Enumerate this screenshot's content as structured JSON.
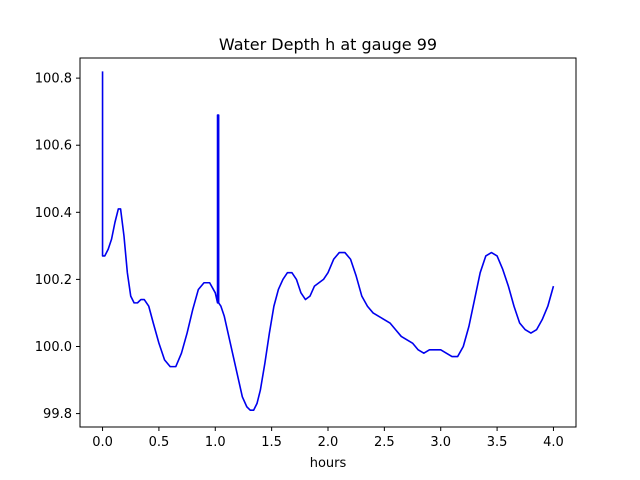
{
  "chart_data": {
    "type": "line",
    "title": "Water Depth h at gauge 99",
    "xlabel": "hours",
    "ylabel": "",
    "xlim": [
      -0.2,
      4.2
    ],
    "ylim": [
      99.76,
      100.86
    ],
    "grid": false,
    "legend": "none",
    "x_ticks": [
      0.0,
      0.5,
      1.0,
      1.5,
      2.0,
      2.5,
      3.0,
      3.5,
      4.0
    ],
    "x_tick_labels": [
      "0.0",
      "0.5",
      "1.0",
      "1.5",
      "2.0",
      "2.5",
      "3.0",
      "3.5",
      "4.0"
    ],
    "y_ticks": [
      99.8,
      100.0,
      100.2,
      100.4,
      100.6,
      100.8
    ],
    "y_tick_labels": [
      "99.8",
      "100.0",
      "100.2",
      "100.4",
      "100.6",
      "100.8"
    ],
    "series": [
      {
        "color": "#0000ee",
        "points": [
          [
            0.0,
            100.82
          ],
          [
            0.0,
            100.27
          ],
          [
            0.02,
            100.27
          ],
          [
            0.05,
            100.29
          ],
          [
            0.08,
            100.32
          ],
          [
            0.11,
            100.37
          ],
          [
            0.14,
            100.41
          ],
          [
            0.16,
            100.41
          ],
          [
            0.19,
            100.33
          ],
          [
            0.22,
            100.22
          ],
          [
            0.25,
            100.15
          ],
          [
            0.28,
            100.13
          ],
          [
            0.31,
            100.13
          ],
          [
            0.34,
            100.14
          ],
          [
            0.37,
            100.14
          ],
          [
            0.41,
            100.12
          ],
          [
            0.45,
            100.07
          ],
          [
            0.5,
            100.01
          ],
          [
            0.55,
            99.96
          ],
          [
            0.6,
            99.94
          ],
          [
            0.65,
            99.94
          ],
          [
            0.7,
            99.98
          ],
          [
            0.75,
            100.04
          ],
          [
            0.8,
            100.11
          ],
          [
            0.85,
            100.17
          ],
          [
            0.9,
            100.19
          ],
          [
            0.95,
            100.19
          ],
          [
            1.0,
            100.16
          ],
          [
            1.02,
            100.13
          ],
          [
            1.02,
            100.69
          ],
          [
            1.03,
            100.69
          ],
          [
            1.03,
            100.13
          ],
          [
            1.05,
            100.12
          ],
          [
            1.08,
            100.09
          ],
          [
            1.12,
            100.03
          ],
          [
            1.16,
            99.97
          ],
          [
            1.2,
            99.91
          ],
          [
            1.24,
            99.85
          ],
          [
            1.28,
            99.82
          ],
          [
            1.31,
            99.81
          ],
          [
            1.34,
            99.81
          ],
          [
            1.37,
            99.83
          ],
          [
            1.4,
            99.87
          ],
          [
            1.44,
            99.95
          ],
          [
            1.48,
            100.04
          ],
          [
            1.52,
            100.12
          ],
          [
            1.56,
            100.17
          ],
          [
            1.6,
            100.2
          ],
          [
            1.64,
            100.22
          ],
          [
            1.68,
            100.22
          ],
          [
            1.72,
            100.2
          ],
          [
            1.76,
            100.16
          ],
          [
            1.8,
            100.14
          ],
          [
            1.84,
            100.15
          ],
          [
            1.88,
            100.18
          ],
          [
            1.92,
            100.19
          ],
          [
            1.96,
            100.2
          ],
          [
            2.0,
            100.22
          ],
          [
            2.05,
            100.26
          ],
          [
            2.1,
            100.28
          ],
          [
            2.15,
            100.28
          ],
          [
            2.2,
            100.26
          ],
          [
            2.25,
            100.21
          ],
          [
            2.3,
            100.15
          ],
          [
            2.35,
            100.12
          ],
          [
            2.4,
            100.1
          ],
          [
            2.45,
            100.09
          ],
          [
            2.5,
            100.08
          ],
          [
            2.55,
            100.07
          ],
          [
            2.6,
            100.05
          ],
          [
            2.65,
            100.03
          ],
          [
            2.7,
            100.02
          ],
          [
            2.75,
            100.01
          ],
          [
            2.8,
            99.99
          ],
          [
            2.85,
            99.98
          ],
          [
            2.9,
            99.99
          ],
          [
            2.95,
            99.99
          ],
          [
            3.0,
            99.99
          ],
          [
            3.05,
            99.98
          ],
          [
            3.1,
            99.97
          ],
          [
            3.15,
            99.97
          ],
          [
            3.2,
            100.0
          ],
          [
            3.25,
            100.06
          ],
          [
            3.3,
            100.14
          ],
          [
            3.35,
            100.22
          ],
          [
            3.4,
            100.27
          ],
          [
            3.45,
            100.28
          ],
          [
            3.5,
            100.27
          ],
          [
            3.55,
            100.23
          ],
          [
            3.6,
            100.18
          ],
          [
            3.65,
            100.12
          ],
          [
            3.7,
            100.07
          ],
          [
            3.75,
            100.05
          ],
          [
            3.8,
            100.04
          ],
          [
            3.85,
            100.05
          ],
          [
            3.9,
            100.08
          ],
          [
            3.95,
            100.12
          ],
          [
            4.0,
            100.18
          ]
        ]
      }
    ]
  }
}
